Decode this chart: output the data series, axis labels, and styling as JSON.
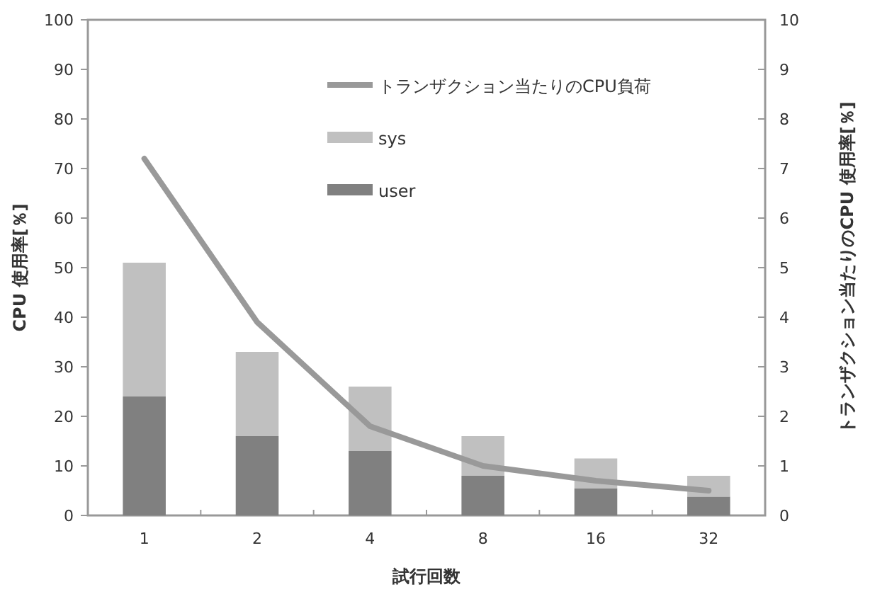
{
  "chart_data": {
    "type": "bar",
    "stacked": true,
    "xlabel": "試行回数",
    "ylabel": "CPU 使用率[％]",
    "y2label": "トランザクション当たりのCPU 使用率[％]",
    "legend": "top",
    "categories": [
      "1",
      "2",
      "4",
      "8",
      "16",
      "32"
    ],
    "ylim": [
      0,
      100
    ],
    "yticks": [
      0,
      10,
      20,
      30,
      40,
      50,
      60,
      70,
      80,
      90,
      100
    ],
    "y2lim": [
      0,
      10
    ],
    "y2ticks": [
      0,
      1,
      2,
      3,
      4,
      5,
      6,
      7,
      8,
      9,
      10
    ],
    "series": [
      {
        "name": "user",
        "color": "#808080",
        "values": [
          24,
          16,
          13,
          8,
          5.5,
          3.8
        ]
      },
      {
        "name": "sys",
        "color": "#c0c0c0",
        "values": [
          27,
          17,
          13,
          8,
          6,
          4.2
        ]
      },
      {
        "name": "トランザクション当たりのCPU負荷",
        "type": "line",
        "axis": "y2",
        "color": "#999999",
        "values": [
          7.2,
          3.9,
          1.8,
          1.0,
          0.7,
          0.5
        ]
      }
    ]
  }
}
